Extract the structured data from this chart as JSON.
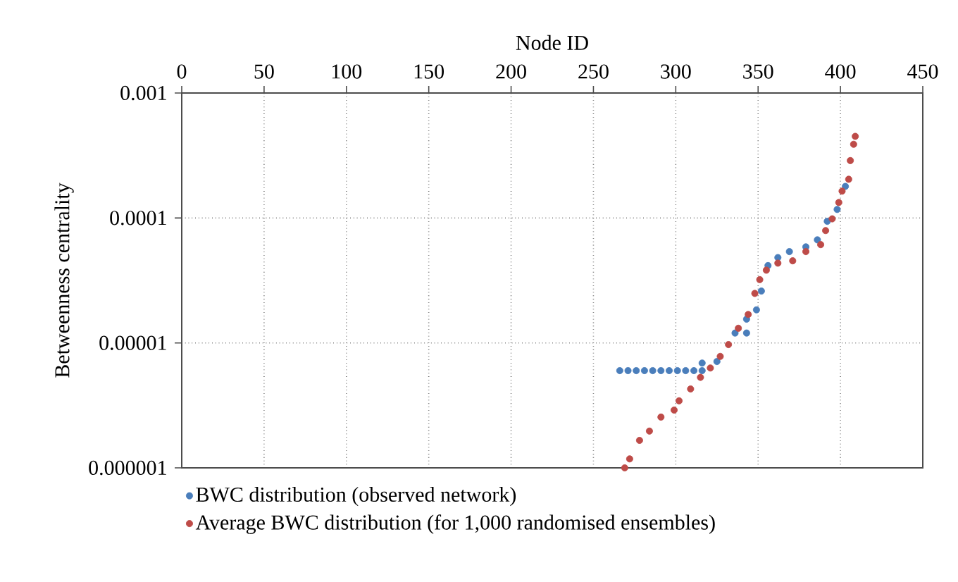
{
  "chart_data": {
    "type": "scatter",
    "xlabel": "Node ID",
    "ylabel": "Betweenness centrality",
    "xlim": [
      0,
      450
    ],
    "xticks": [
      0,
      50,
      100,
      150,
      200,
      250,
      300,
      350,
      400,
      450
    ],
    "ylim": [
      1e-06,
      0.001
    ],
    "yticks": [
      {
        "value": 1e-06,
        "label": "0.000001"
      },
      {
        "value": 1e-05,
        "label": "0.00001"
      },
      {
        "value": 0.0001,
        "label": "0.0001"
      },
      {
        "value": 0.001,
        "label": "0.001"
      }
    ],
    "log": "y",
    "grid": true,
    "legend": "bottom",
    "marker": "circle",
    "series": [
      {
        "name": "BWC distribution (observed network)",
        "color": "#4a7ebb",
        "x": [
          266,
          271,
          276,
          281,
          286,
          291,
          296,
          301,
          306,
          311,
          316,
          316,
          325,
          326,
          332,
          336,
          343,
          343,
          349,
          352,
          356,
          362,
          369,
          379,
          386,
          392,
          398,
          403
        ],
        "values": [
          6e-06,
          6e-06,
          6e-06,
          6e-06,
          6e-06,
          6e-06,
          6e-06,
          6e-06,
          6e-06,
          6e-06,
          6e-06,
          6.9e-06,
          7.1e-06,
          null,
          null,
          1.2e-05,
          1.2e-05,
          1.55e-05,
          1.84e-05,
          2.6e-05,
          4.16e-05,
          4.82e-05,
          5.38e-05,
          5.87e-05,
          6.68e-05,
          9.4e-05,
          0.000117,
          0.000179
        ]
      },
      {
        "name": "Average BWC distribution (for 1,000 randomised ensembles)",
        "color": "#be4b48",
        "x": [
          269,
          272,
          278,
          284,
          291,
          299,
          302,
          309,
          315,
          321,
          327,
          332,
          338,
          344,
          348,
          351,
          355,
          362,
          371,
          379,
          388,
          391,
          395,
          399,
          401,
          405,
          406,
          408,
          409
        ],
        "values": [
          1e-06,
          1.18e-06,
          1.66e-06,
          1.97e-06,
          2.55e-06,
          2.9e-06,
          3.44e-06,
          4.28e-06,
          5.3e-06,
          6.3e-06,
          7.8e-06,
          9.7e-06,
          1.31e-05,
          1.69e-05,
          2.49e-05,
          3.21e-05,
          3.82e-05,
          4.35e-05,
          4.54e-05,
          5.38e-05,
          6.12e-05,
          7.93e-05,
          9.84e-05,
          0.000133,
          0.000164,
          0.000204,
          0.000288,
          0.000389,
          0.00045
        ]
      }
    ]
  }
}
